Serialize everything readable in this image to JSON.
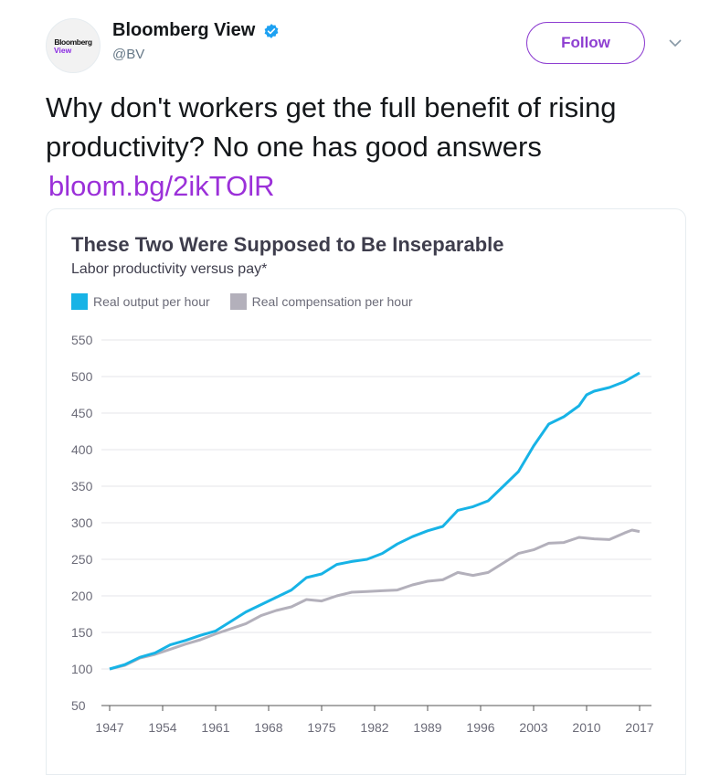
{
  "account": {
    "avatar_brand": "Bloomberg",
    "avatar_sub": "View",
    "display_name": "Bloomberg View",
    "handle": "@BV",
    "follow_label": "Follow"
  },
  "tweet": {
    "text": "Why don't workers get the full benefit of rising productivity? No one has good answers",
    "link": "bloom.bg/2ikTOlR"
  },
  "colors": {
    "output": "#17b3e6",
    "compensation": "#b3b0bb",
    "follow": "#8e3fd1",
    "link": "#9b30d9"
  },
  "chart_data": {
    "type": "line",
    "title": "These Two Were Supposed to Be Inseparable",
    "subtitle": "Labor productivity versus pay*",
    "ylim": [
      50,
      550
    ],
    "yticks": [
      50,
      100,
      150,
      200,
      250,
      300,
      350,
      400,
      450,
      500,
      550
    ],
    "xlim": [
      1947,
      2017
    ],
    "xticks": [
      1947,
      1954,
      1961,
      1968,
      1975,
      1982,
      1989,
      1996,
      2003,
      2010,
      2017
    ],
    "grid": true,
    "legend_position": "top-left",
    "series": [
      {
        "name": "Real output per hour",
        "points": [
          [
            1947,
            100
          ],
          [
            1949,
            106
          ],
          [
            1951,
            116
          ],
          [
            1953,
            122
          ],
          [
            1955,
            133
          ],
          [
            1957,
            139
          ],
          [
            1959,
            146
          ],
          [
            1961,
            152
          ],
          [
            1963,
            165
          ],
          [
            1965,
            178
          ],
          [
            1967,
            188
          ],
          [
            1969,
            198
          ],
          [
            1971,
            208
          ],
          [
            1973,
            225
          ],
          [
            1975,
            230
          ],
          [
            1977,
            243
          ],
          [
            1979,
            247
          ],
          [
            1981,
            250
          ],
          [
            1983,
            258
          ],
          [
            1985,
            271
          ],
          [
            1987,
            281
          ],
          [
            1989,
            289
          ],
          [
            1991,
            295
          ],
          [
            1993,
            317
          ],
          [
            1995,
            322
          ],
          [
            1997,
            330
          ],
          [
            1999,
            350
          ],
          [
            2001,
            370
          ],
          [
            2003,
            405
          ],
          [
            2005,
            435
          ],
          [
            2007,
            445
          ],
          [
            2009,
            460
          ],
          [
            2010,
            475
          ],
          [
            2011,
            480
          ],
          [
            2013,
            485
          ],
          [
            2015,
            493
          ],
          [
            2017,
            505
          ]
        ]
      },
      {
        "name": "Real compensation per hour",
        "points": [
          [
            1947,
            100
          ],
          [
            1949,
            105
          ],
          [
            1951,
            115
          ],
          [
            1953,
            120
          ],
          [
            1955,
            127
          ],
          [
            1957,
            134
          ],
          [
            1959,
            140
          ],
          [
            1961,
            148
          ],
          [
            1963,
            155
          ],
          [
            1965,
            162
          ],
          [
            1967,
            173
          ],
          [
            1969,
            180
          ],
          [
            1971,
            185
          ],
          [
            1973,
            195
          ],
          [
            1975,
            193
          ],
          [
            1977,
            200
          ],
          [
            1979,
            205
          ],
          [
            1981,
            206
          ],
          [
            1983,
            207
          ],
          [
            1985,
            208
          ],
          [
            1987,
            215
          ],
          [
            1989,
            220
          ],
          [
            1991,
            222
          ],
          [
            1993,
            232
          ],
          [
            1995,
            228
          ],
          [
            1997,
            232
          ],
          [
            1999,
            245
          ],
          [
            2001,
            258
          ],
          [
            2003,
            263
          ],
          [
            2005,
            272
          ],
          [
            2007,
            273
          ],
          [
            2009,
            280
          ],
          [
            2011,
            278
          ],
          [
            2013,
            277
          ],
          [
            2015,
            286
          ],
          [
            2016,
            290
          ],
          [
            2017,
            288
          ]
        ]
      }
    ]
  }
}
